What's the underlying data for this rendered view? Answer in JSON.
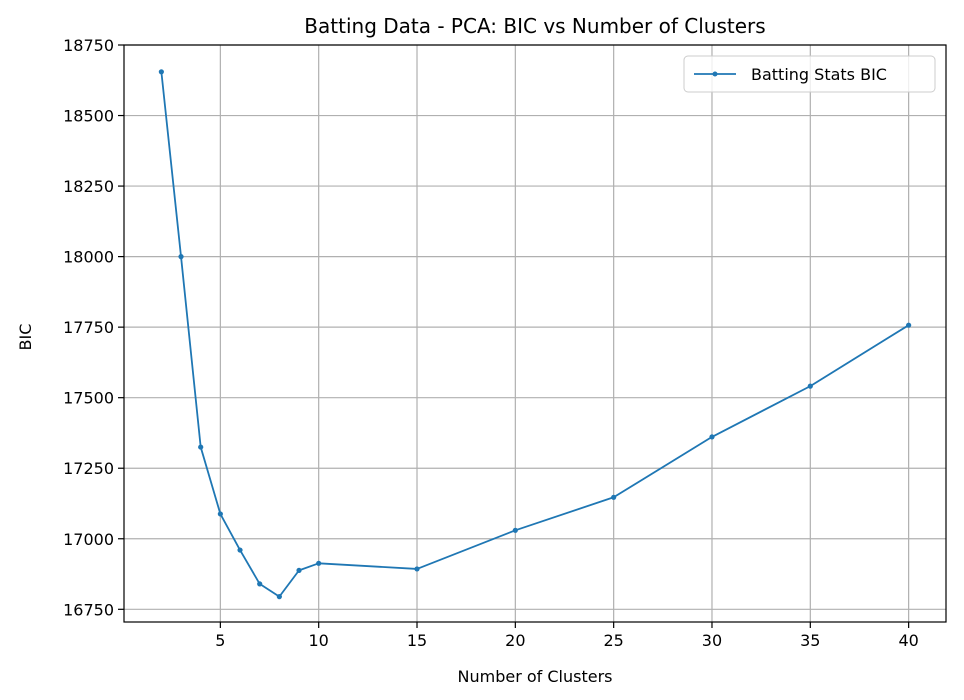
{
  "chart_data": {
    "type": "line",
    "title": "Batting Data - PCA: BIC vs Number of Clusters",
    "xlabel": "Number of Clusters",
    "ylabel": "BIC",
    "xlim": [
      0.1,
      41.9
    ],
    "ylim": [
      16705,
      18750
    ],
    "xticks": [
      5,
      10,
      15,
      20,
      25,
      30,
      35,
      40
    ],
    "yticks": [
      16750,
      17000,
      17250,
      17500,
      17750,
      18000,
      18250,
      18500,
      18750
    ],
    "grid": true,
    "legend_position": "top-right",
    "colors": {
      "series": "#1f77b4",
      "grid": "#b0b0b0"
    },
    "series": [
      {
        "name": "Batting Stats BIC",
        "x": [
          2,
          3,
          4,
          5,
          6,
          7,
          8,
          9,
          10,
          15,
          20,
          25,
          30,
          35,
          40
        ],
        "y": [
          18655,
          18000,
          17325,
          17088,
          16960,
          16840,
          16795,
          16888,
          16913,
          16893,
          17030,
          17147,
          17361,
          17541,
          17757
        ]
      }
    ]
  }
}
